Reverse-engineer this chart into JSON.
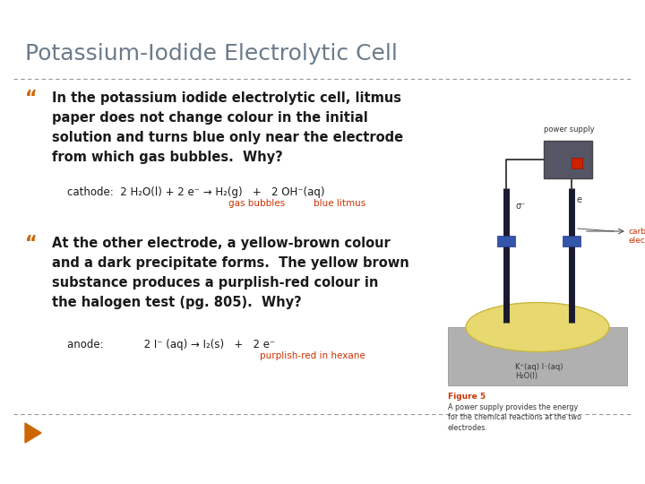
{
  "title": "Potassium-Iodide Electrolytic Cell",
  "title_color": "#6b7b8a",
  "title_fontsize": 18,
  "bg_color": "#ffffff",
  "bullet_color": "#cc6600",
  "text_color": "#1a1a1a",
  "bullet1_line1": "In the potassium iodide electrolytic cell, litmus",
  "bullet1_line2": "paper does not change colour in the initial",
  "bullet1_line3": "solution and turns blue only near the electrode",
  "bullet1_line4": "from which gas bubbles.  Why?",
  "bullet2_line1": "At the other electrode, a yellow-brown colour",
  "bullet2_line2": "and a dark precipitate forms.  The yellow brown",
  "bullet2_line3": "substance produces a purplish-red colour in",
  "bullet2_line4": "the halogen test (pg. 805).  Why?",
  "eq1": "cathode:  2 H₂O(l) + 2 e⁻ → H₂(g)   +   2 OH⁻(aq)",
  "eq1_label1": "gas bubbles",
  "eq1_label2": "blue litmus",
  "eq1_label_color": "#cc3300",
  "eq2": "anode:            2 I⁻ (aq) → I₂(s)   +   2 e⁻",
  "eq2_label": "purplish-red in hexane",
  "eq2_label_color": "#cc3300",
  "divider_color": "#999999",
  "bottom_arrow_color": "#cc6600",
  "fig_title": "Figure 5",
  "fig_title_color": "#cc3300",
  "fig_caption": "A power supply provides the energy\nfor the chemical reactions at the two\nelectrodes.",
  "fig_caption_color": "#333333",
  "ps_label": "power supply",
  "sigma_label": "σ⁻",
  "e_label": "e",
  "carbon_label": "carbon\nelectrode",
  "ki_label": "K⁺(aq) I⁻(aq)\nH₂O(l)"
}
